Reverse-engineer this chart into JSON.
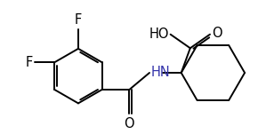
{
  "background": "#ffffff",
  "line_color": "#000000",
  "line_width": 1.4,
  "font_size": 10.5,
  "label_color_F": "#000000",
  "label_color_O": "#000000",
  "label_color_N": "#3333aa",
  "label_color_HO": "#000000",
  "xlim": [
    -0.3,
    4.2
  ],
  "ylim": [
    -0.6,
    1.8
  ]
}
